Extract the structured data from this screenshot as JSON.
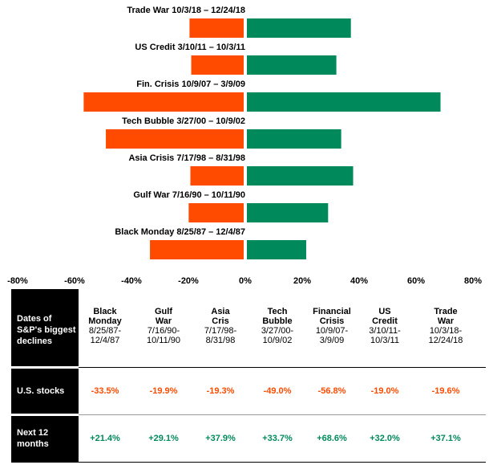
{
  "colors": {
    "negative": "#ff4b00",
    "positive": "#008a5c"
  },
  "chart_data": {
    "type": "bar",
    "orientation": "horizontal",
    "categories": [
      "Trade War 10/3/18 – 12/24/18",
      "US Credit 3/10/11 – 10/3/11",
      "Fin. Crisis 10/9/07 – 3/9/09",
      "Tech Bubble 3/27/00 – 10/9/02",
      "Asia Crisis 7/17/98 – 8/31/98",
      "Gulf War 7/16/90 – 10/11/90",
      "Black Monday 8/25/87 – 12/4/87"
    ],
    "series": [
      {
        "color": "#ff4b00",
        "values": [
          -19.6,
          -19.0,
          -56.8,
          -49.0,
          -19.3,
          -19.9,
          -33.5
        ]
      },
      {
        "color": "#008a5c",
        "values": [
          37.1,
          32.0,
          68.6,
          33.7,
          37.9,
          29.1,
          21.4
        ]
      }
    ],
    "xlim": [
      -80,
      80
    ],
    "xticks": [
      "-80%",
      "-60%",
      "-40%",
      "-20%",
      "0%",
      "20%",
      "40%",
      "60%",
      "80%"
    ],
    "grid": false
  },
  "table": {
    "row_header_1": "Dates of S&P's biggest declines",
    "row_header_2": "U.S. stocks",
    "row_header_3": "Next 12 months",
    "columns": [
      {
        "name": [
          "Black",
          "Monday"
        ],
        "dates": [
          "8/25/87-",
          "12/4/87"
        ],
        "stocks": "-33.5%",
        "next": "+21.4%"
      },
      {
        "name": [
          "Gulf",
          "War"
        ],
        "dates": [
          "7/16/90-",
          "10/11/90"
        ],
        "stocks": "-19.9%",
        "next": "+29.1%"
      },
      {
        "name": [
          "Asia",
          "Cris"
        ],
        "dates": [
          "7/17/98-",
          "8/31/98"
        ],
        "stocks": "-19.3%",
        "next": "+37.9%"
      },
      {
        "name": [
          "Tech",
          "Bubble"
        ],
        "dates": [
          "3/27/00-",
          "10/9/02"
        ],
        "stocks": "-49.0%",
        "next": "+33.7%"
      },
      {
        "name": [
          "Financial",
          "Crisis"
        ],
        "dates": [
          "10/9/07-",
          "3/9/09"
        ],
        "stocks": "-56.8%",
        "next": "+68.6%"
      },
      {
        "name": [
          "US",
          "Credit"
        ],
        "dates": [
          "3/10/11-",
          "10/3/11"
        ],
        "stocks": "-19.0%",
        "next": "+32.0%"
      },
      {
        "name": [
          "Trade",
          "War"
        ],
        "dates": [
          "10/3/18-",
          "12/24/18"
        ],
        "stocks": "-19.6%",
        "next": "+37.1%"
      }
    ]
  }
}
